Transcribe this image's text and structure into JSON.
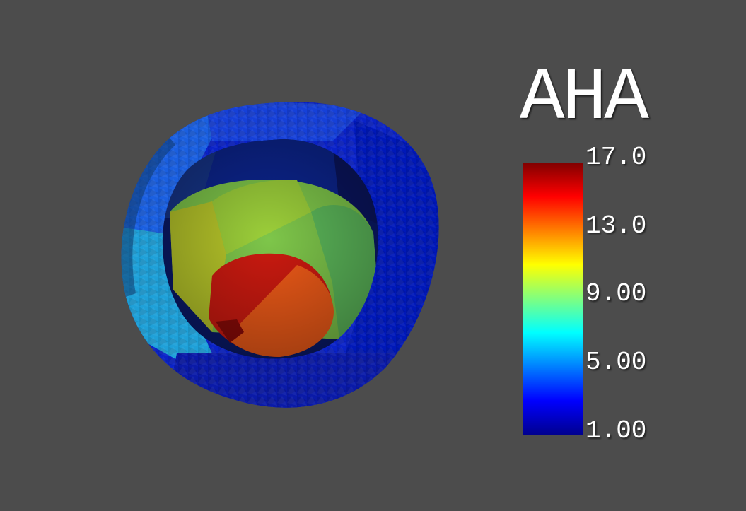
{
  "scalar_bar": {
    "title": "AHA",
    "range": [
      1.0,
      17.0
    ],
    "colormap": "jet",
    "tick_labels": [
      "17.0",
      "13.0",
      "9.00",
      "5.00",
      "1.00"
    ]
  },
  "colors": {
    "background": "#4c4c4c",
    "label_text": "#ffffff"
  }
}
